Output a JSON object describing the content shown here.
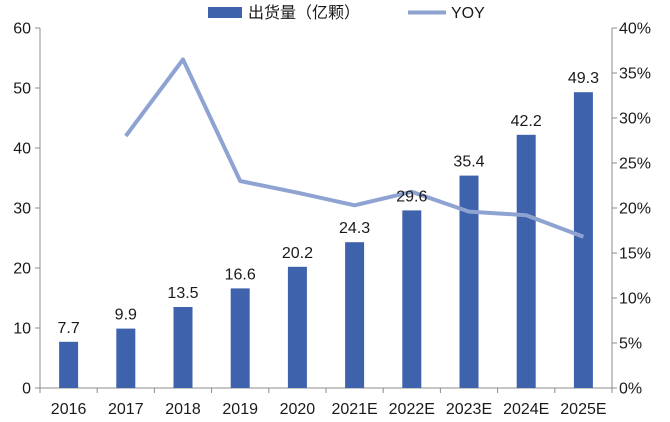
{
  "chart_data": {
    "type": "bar",
    "categories": [
      "2016",
      "2017",
      "2018",
      "2019",
      "2020",
      "2021E",
      "2022E",
      "2023E",
      "2024E",
      "2025E"
    ],
    "series": [
      {
        "name": "出货量（亿颗）",
        "type": "bar",
        "axis": "left",
        "color": "#3f62ad",
        "values": [
          7.7,
          9.9,
          13.5,
          16.6,
          20.2,
          24.3,
          29.6,
          35.4,
          42.2,
          49.3
        ],
        "value_labels": [
          "7.7",
          "9.9",
          "13.5",
          "16.6",
          "20.2",
          "24.3",
          "29.6",
          "35.4",
          "42.2",
          "49.3"
        ]
      },
      {
        "name": "YOY",
        "type": "line",
        "axis": "right",
        "color": "#8ea3d1",
        "values": [
          null,
          28.0,
          36.5,
          23.0,
          21.7,
          20.3,
          21.8,
          19.6,
          19.2,
          16.8
        ]
      }
    ],
    "y_left": {
      "min": 0,
      "max": 60,
      "ticks": [
        "0",
        "10",
        "20",
        "30",
        "40",
        "50",
        "60"
      ]
    },
    "y_right": {
      "min": 0,
      "max": 40,
      "ticks": [
        "0%",
        "5%",
        "10%",
        "15%",
        "20%",
        "25%",
        "30%",
        "35%",
        "40%"
      ]
    },
    "legend_position": "top",
    "grid": false,
    "title": "",
    "xlabel": "",
    "ylabel": ""
  }
}
